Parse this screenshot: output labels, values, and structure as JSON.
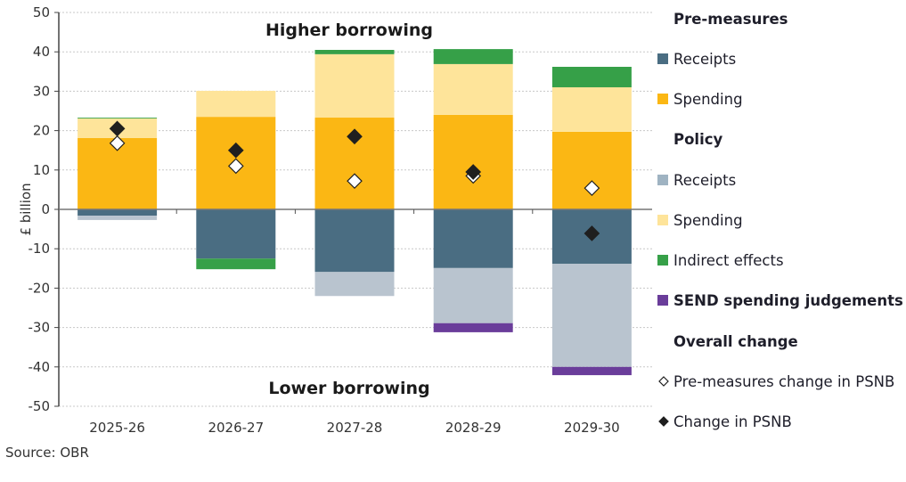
{
  "chart_data": {
    "type": "bar",
    "stacked": true,
    "ylabel": "£ billion",
    "xlabel": "",
    "ylim": [
      -50,
      50
    ],
    "yticks": [
      50,
      40,
      30,
      20,
      10,
      0,
      -10,
      -20,
      -30,
      -40,
      -50
    ],
    "grid": true,
    "categories": [
      "2025-26",
      "2026-27",
      "2027-28",
      "2028-29",
      "2029-30"
    ],
    "annotations": {
      "top": "Higher borrowing",
      "bottom": "Lower borrowing"
    },
    "series": [
      {
        "name": "Pre-measures receipts",
        "group": "Pre-measures",
        "color": "#4a6d82",
        "values": [
          -1.6,
          -12.5,
          -15.9,
          -14.9,
          -13.8
        ]
      },
      {
        "name": "Pre-measures spending",
        "group": "Pre-measures",
        "color": "#fbb714",
        "values": [
          18.1,
          23.5,
          23.3,
          24.0,
          19.7
        ]
      },
      {
        "name": "Policy receipts",
        "group": "Policy",
        "color": "#b9c4cf",
        "values": [
          -1.1,
          0,
          -6.1,
          -14.0,
          -26.2
        ]
      },
      {
        "name": "Policy spending",
        "group": "Policy",
        "color": "#fee49a",
        "values": [
          5.0,
          6.6,
          16.1,
          12.9,
          11.3
        ]
      },
      {
        "name": "Indirect effects",
        "group": "Policy",
        "color": "#36a048",
        "values": [
          0.2,
          -2.7,
          1.1,
          3.8,
          5.2
        ]
      },
      {
        "name": "SEND spending judgements",
        "group": "Policy",
        "color": "#6a3d9a",
        "values": [
          0,
          0,
          0,
          -2.3,
          -2.1
        ]
      }
    ],
    "markers": [
      {
        "name": "Pre-measures change in PSNB",
        "style": "hollow-diamond",
        "values": [
          16.8,
          11.0,
          7.2,
          8.5,
          5.4
        ]
      },
      {
        "name": "Change in PSNB",
        "style": "filled-diamond",
        "values": [
          20.5,
          15.0,
          18.5,
          9.5,
          -6.1
        ]
      }
    ]
  },
  "legend": {
    "items": [
      {
        "type": "heading",
        "label": "Pre-measures"
      },
      {
        "type": "swatch",
        "label": "Receipts",
        "color": "#4a6d82"
      },
      {
        "type": "swatch",
        "label": "Spending",
        "color": "#fbb714"
      },
      {
        "type": "heading",
        "label": "Policy"
      },
      {
        "type": "swatch",
        "label": "Receipts",
        "color": "#9fb3c2"
      },
      {
        "type": "swatch",
        "label": "Spending",
        "color": "#fee49a"
      },
      {
        "type": "swatch",
        "label": "Indirect effects",
        "color": "#36a048"
      },
      {
        "type": "swatch",
        "label": "SEND spending judgements",
        "color": "#6a3d9a",
        "bold": true
      },
      {
        "type": "heading",
        "label": "Overall change"
      },
      {
        "type": "hollow-diamond",
        "label": "Pre-measures change in PSNB"
      },
      {
        "type": "filled-diamond",
        "label": "Change in PSNB"
      }
    ]
  },
  "source": "Source: OBR"
}
